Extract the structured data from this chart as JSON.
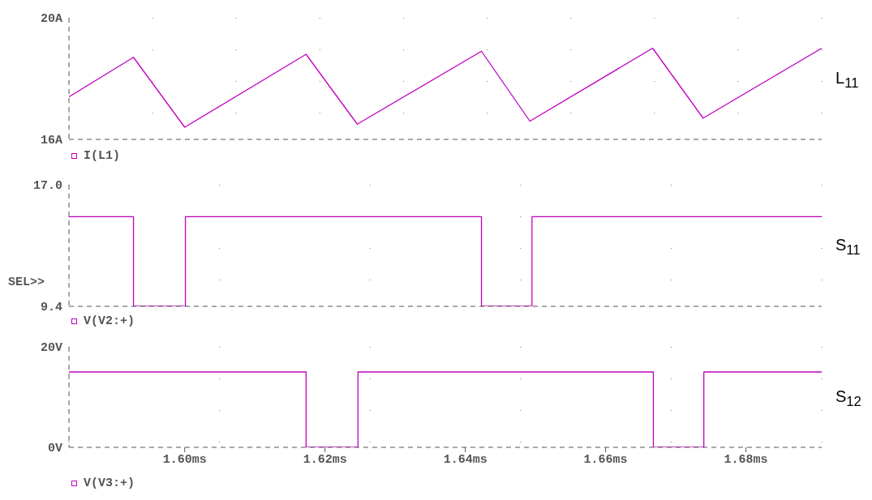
{
  "chart_data": [
    {
      "type": "line",
      "annotations": [
        "L$_{11}$"
      ],
      "x": [
        1.5835,
        1.5927,
        1.6,
        1.6173,
        1.6246,
        1.6423,
        1.6492,
        1.6667,
        1.6739,
        1.6908
      ],
      "series": [
        {
          "name": "I(L1)",
          "color": "#c000c0",
          "values": [
            17.4,
            18.7,
            16.4,
            18.8,
            16.5,
            18.9,
            16.6,
            19.0,
            16.7,
            19.0
          ]
        }
      ],
      "xlim": [
        1.5835,
        1.6908
      ],
      "xticks": [
        {
          "value": 1.6,
          "label": null
        },
        {
          "value": 1.62,
          "label": null
        },
        {
          "value": 1.64,
          "label": null
        },
        {
          "value": 1.66,
          "label": null
        },
        {
          "value": 1.68,
          "label": null
        }
      ],
      "ylim": [
        16,
        20
      ],
      "yticks": [
        {
          "value": 16,
          "label": "16A"
        },
        {
          "value": 20,
          "label": "20A"
        }
      ],
      "tick_labels": "y",
      "grid": "x",
      "legend": "bottom left"
    },
    {
      "type": "step",
      "annotations": [
        "S$_{11}$",
        "SEL>>"
      ],
      "x": [
        1.5835,
        1.5927,
        1.6001,
        1.6423,
        1.6495,
        1.6908
      ],
      "series": [
        {
          "name": "V(V2:+)",
          "color": "#c000c0",
          "values": [
            15,
            9.4,
            15,
            9.4,
            15,
            15
          ]
        }
      ],
      "xlim": [
        1.5835,
        1.6908
      ],
      "xticks": [
        {
          "value": 1.6,
          "label": null
        },
        {
          "value": 1.62,
          "label": null
        },
        {
          "value": 1.64,
          "label": null
        },
        {
          "value": 1.66,
          "label": null
        },
        {
          "value": 1.68,
          "label": null
        }
      ],
      "ylim": [
        9.4,
        17
      ],
      "yticks": [
        {
          "value": 9.4,
          "label": "9.4"
        },
        {
          "value": 17,
          "label": "17.0"
        }
      ],
      "tick_labels": "y",
      "grid": "x",
      "legend": "bottom left"
    },
    {
      "type": "step",
      "annotations": [
        "S$_{12}$"
      ],
      "x": [
        1.5835,
        1.6173,
        1.6247,
        1.6668,
        1.674,
        1.6908
      ],
      "series": [
        {
          "name": "V(V3:+)",
          "color": "#c000c0",
          "values": [
            15,
            0,
            15,
            0,
            15,
            15
          ]
        }
      ],
      "xlim": [
        1.5835,
        1.6908
      ],
      "xticks": [
        {
          "value": 1.6,
          "label": "1.60ms"
        },
        {
          "value": 1.62,
          "label": "1.62ms"
        },
        {
          "value": 1.64,
          "label": "1.64ms"
        },
        {
          "value": 1.66,
          "label": "1.66ms"
        },
        {
          "value": 1.68,
          "label": "1.68ms"
        }
      ],
      "ylim": [
        0,
        20
      ],
      "yticks": [
        {
          "value": 0,
          "label": "0V"
        },
        {
          "value": 20,
          "label": "20V"
        }
      ],
      "grid": "x",
      "legend": "bottom left"
    }
  ]
}
